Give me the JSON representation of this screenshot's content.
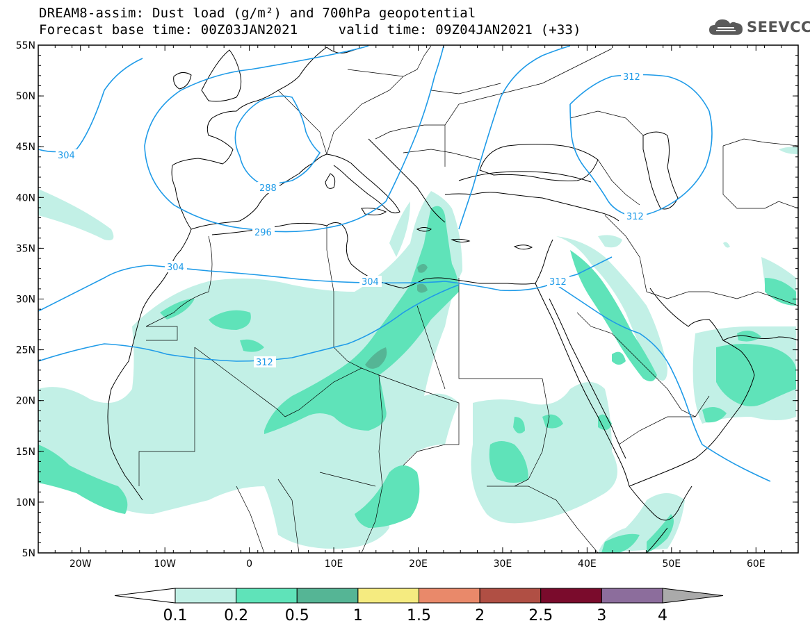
{
  "title": {
    "line1": "DREAM8-assim: Dust load (g/m²) and 700hPa geopotential",
    "line2": "Forecast base time: 00Z03JAN2021     valid time: 09Z04JAN2021 (+33)"
  },
  "logo": {
    "text": "SEEVCCC",
    "icon": "cloud-icon"
  },
  "map": {
    "lon_range": [
      -25,
      65
    ],
    "lat_range": [
      5,
      55
    ],
    "lat_ticks": [
      "55N",
      "50N",
      "45N",
      "40N",
      "35N",
      "30N",
      "25N",
      "20N",
      "15N",
      "10N",
      "5N"
    ],
    "lon_ticks": [
      "20W",
      "10W",
      "0",
      "10E",
      "20E",
      "30E",
      "40E",
      "50E",
      "60E"
    ],
    "contour_color": "#1f9be8",
    "contour_labels": [
      "304",
      "288",
      "296",
      "304",
      "304",
      "312",
      "312",
      "312"
    ]
  },
  "colorbar": {
    "colors": [
      "#ffffff",
      "#c2f0e6",
      "#5fe3b9",
      "#55b595",
      "#f5eb80",
      "#e9896a",
      "#b04f44",
      "#7a0b2c",
      "#8c6d9c",
      "#aaaaaa"
    ],
    "labels": [
      "0.1",
      "0.2",
      "0.5",
      "1",
      "1.5",
      "2",
      "2.5",
      "3",
      "4"
    ]
  }
}
